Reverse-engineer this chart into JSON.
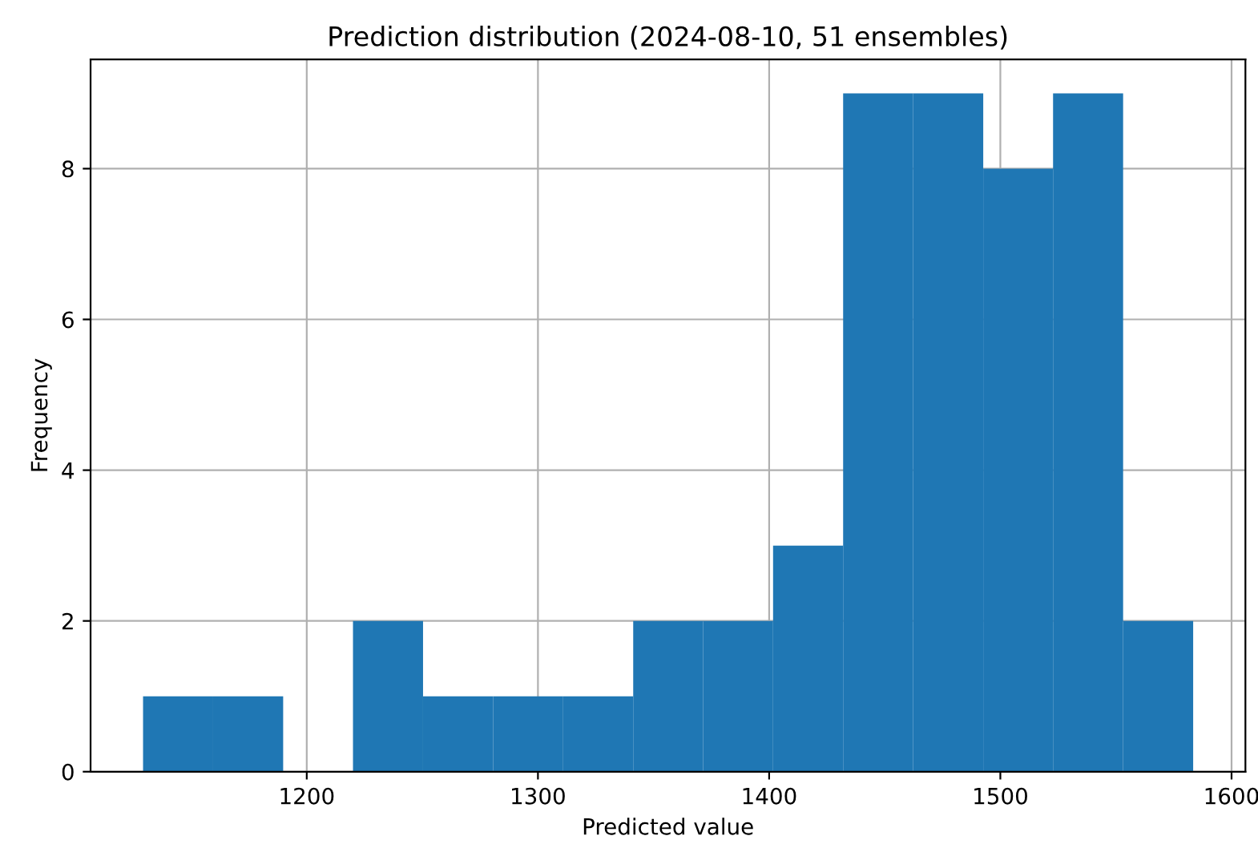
{
  "chart_data": {
    "type": "histogram",
    "title": "Prediction distribution (2024-08-10, 51 ensembles)",
    "xlabel": "Predicted value",
    "ylabel": "Frequency",
    "bins": [
      1129.2,
      1159.5,
      1189.8,
      1220.0,
      1250.3,
      1280.6,
      1310.9,
      1341.2,
      1371.4,
      1401.7,
      1432.0,
      1462.3,
      1492.6,
      1522.8,
      1553.1,
      1583.4
    ],
    "values": [
      1,
      1,
      0,
      2,
      1,
      1,
      1,
      2,
      2,
      3,
      9,
      9,
      8,
      9,
      2
    ],
    "color": "#1f77b4",
    "xlim": [
      1106.5,
      1606
    ],
    "ylim": [
      0,
      9.45
    ],
    "xticks": [
      1200,
      1300,
      1400,
      1500,
      1600
    ],
    "yticks": [
      0,
      2,
      4,
      6,
      8
    ],
    "grid": true
  }
}
